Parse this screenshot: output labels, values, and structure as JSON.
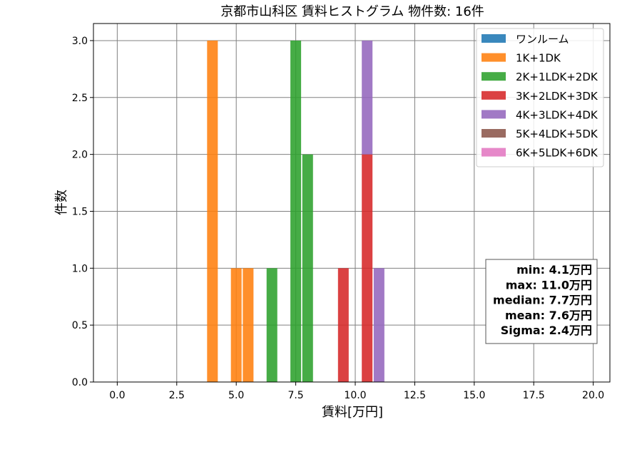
{
  "chart_data": {
    "type": "bar",
    "stacked": true,
    "title": "京都市山科区 賃料ヒストグラム  物件数: 16件",
    "xlabel": "賃料[万円]",
    "ylabel": "件数",
    "xlim": [
      -1.0,
      20.7
    ],
    "ylim": [
      0,
      3.15
    ],
    "xticks": [
      0.0,
      2.5,
      5.0,
      7.5,
      10.0,
      12.5,
      15.0,
      17.5,
      20.0
    ],
    "xtick_labels": [
      "0.0",
      "2.5",
      "5.0",
      "7.5",
      "10.0",
      "12.5",
      "15.0",
      "17.5",
      "20.0"
    ],
    "yticks": [
      0.0,
      0.5,
      1.0,
      1.5,
      2.0,
      2.5,
      3.0
    ],
    "ytick_labels": [
      "0.0",
      "0.5",
      "1.0",
      "1.5",
      "2.0",
      "2.5",
      "3.0"
    ],
    "grid": true,
    "legend_position": "top-right",
    "bin_width": 0.5,
    "series": [
      {
        "name": "ワンルーム",
        "color": "#1f77b4",
        "bins": []
      },
      {
        "name": "1K+1DK",
        "color": "#ff7f0e",
        "bins": [
          {
            "x": 4.0,
            "count": 3
          },
          {
            "x": 5.0,
            "count": 1
          },
          {
            "x": 5.5,
            "count": 1
          }
        ]
      },
      {
        "name": "2K+1LDK+2DK",
        "color": "#2ca02c",
        "bins": [
          {
            "x": 6.5,
            "count": 1
          },
          {
            "x": 7.5,
            "count": 3
          },
          {
            "x": 8.0,
            "count": 2
          }
        ]
      },
      {
        "name": "3K+2LDK+3DK",
        "color": "#d62728",
        "bins": [
          {
            "x": 9.5,
            "count": 1
          },
          {
            "x": 10.5,
            "count": 2
          }
        ]
      },
      {
        "name": "4K+3LDK+4DK",
        "color": "#9467bd",
        "bins": [
          {
            "x": 10.5,
            "count": 1
          },
          {
            "x": 11.0,
            "count": 1
          }
        ]
      },
      {
        "name": "5K+4LDK+5DK",
        "color": "#8c564b",
        "bins": []
      },
      {
        "name": "6K+5LDK+6DK",
        "color": "#e377c2",
        "bins": []
      }
    ],
    "annotations": [
      "min: 4.1万円",
      "max: 11.0万円",
      "median: 7.7万円",
      "mean: 7.6万円",
      "Sigma: 2.4万円"
    ]
  }
}
